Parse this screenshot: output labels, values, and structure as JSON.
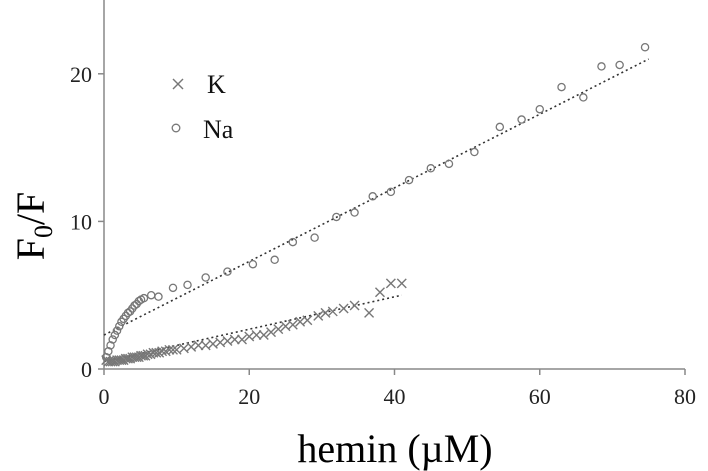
{
  "chart_data": {
    "type": "scatter",
    "title": "",
    "xlabel": "hemin (µM)",
    "ylabel_main": "F",
    "ylabel_sub": "0",
    "ylabel_tail": "/F",
    "xlim": [
      0,
      80
    ],
    "ylim": [
      0,
      25
    ],
    "xticks": [
      0,
      20,
      40,
      60,
      80
    ],
    "yticks": [
      0,
      10,
      20
    ],
    "grid": false,
    "legend_position": "top-left",
    "colors": {
      "axis": "#888888",
      "marker": "#777777",
      "fit": "#333333",
      "text": "#111111"
    },
    "series": [
      {
        "name": "K",
        "marker": "x",
        "x": [
          0.3,
          0.6,
          0.9,
          1.2,
          1.5,
          1.8,
          2.1,
          2.4,
          2.7,
          3.0,
          3.3,
          3.6,
          3.9,
          4.2,
          4.5,
          4.8,
          5.1,
          5.4,
          5.7,
          6.0,
          6.4,
          6.8,
          7.2,
          7.6,
          8.0,
          8.5,
          9.0,
          9.5,
          10.0,
          11.0,
          12.0,
          13.0,
          14.0,
          15.0,
          16.0,
          17.0,
          18.0,
          19.0,
          20.0,
          21.0,
          22.0,
          23.0,
          24.0,
          25.0,
          26.0,
          27.0,
          28.0,
          29.5,
          30.5,
          31.5,
          33.0,
          34.5,
          36.5,
          38.0,
          39.5,
          41.0
        ],
        "y": [
          0.6,
          0.5,
          0.5,
          0.5,
          0.5,
          0.6,
          0.6,
          0.6,
          0.6,
          0.7,
          0.7,
          0.7,
          0.8,
          0.8,
          0.8,
          0.8,
          0.9,
          0.9,
          0.9,
          1.0,
          1.0,
          1.1,
          1.1,
          1.1,
          1.2,
          1.2,
          1.3,
          1.3,
          1.3,
          1.4,
          1.5,
          1.6,
          1.6,
          1.7,
          1.8,
          1.9,
          2.0,
          2.0,
          2.2,
          2.3,
          2.3,
          2.5,
          2.7,
          2.9,
          3.0,
          3.2,
          3.3,
          3.6,
          3.8,
          3.9,
          4.1,
          4.3,
          3.8,
          5.2,
          5.8,
          5.8
        ]
      },
      {
        "name": "Na",
        "marker": "o",
        "x": [
          0.3,
          0.6,
          0.9,
          1.2,
          1.5,
          1.8,
          2.1,
          2.4,
          2.7,
          3.0,
          3.3,
          3.6,
          3.9,
          4.2,
          4.5,
          4.8,
          5.1,
          5.5,
          6.5,
          7.5,
          9.5,
          11.5,
          14.0,
          17.0,
          20.5,
          23.5,
          26.0,
          29.0,
          32.0,
          34.5,
          37.0,
          39.5,
          42.0,
          45.0,
          47.5,
          51.0,
          54.5,
          57.5,
          60.0,
          63.0,
          66.0,
          68.5,
          71.0,
          74.5
        ],
        "y": [
          0.8,
          1.2,
          1.6,
          2.0,
          2.3,
          2.6,
          2.9,
          3.2,
          3.4,
          3.6,
          3.8,
          3.9,
          4.1,
          4.3,
          4.4,
          4.6,
          4.7,
          4.8,
          5.0,
          4.9,
          5.5,
          5.7,
          6.2,
          6.6,
          7.1,
          7.4,
          8.6,
          8.9,
          10.3,
          10.6,
          11.7,
          12.0,
          12.8,
          13.6,
          13.9,
          14.7,
          16.4,
          16.9,
          17.6,
          19.1,
          18.4,
          20.5,
          20.6,
          21.8
        ]
      }
    ],
    "fit_lines": [
      {
        "series": "K",
        "x": [
          0,
          41
        ],
        "y": [
          0.5,
          5.0
        ]
      },
      {
        "series": "Na",
        "x": [
          0,
          75
        ],
        "y": [
          2.3,
          21.0
        ]
      }
    ]
  }
}
